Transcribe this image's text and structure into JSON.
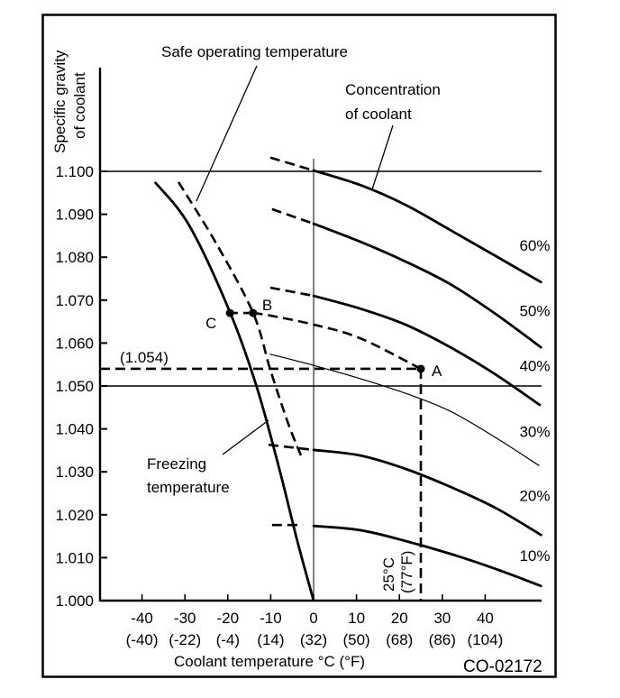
{
  "chart_data": {
    "type": "line",
    "title": "",
    "ylabel_lines": [
      "Specific gravity",
      "of coolant"
    ],
    "xlabel": "Coolant  temperature °C (°F)",
    "figure_id": "CO-02172",
    "xlim": [
      -50,
      53
    ],
    "ylim": [
      1.0,
      1.1
    ],
    "x_ticks": [
      {
        "value": -40,
        "c": "-40",
        "f": "(-40)"
      },
      {
        "value": -30,
        "c": "-30",
        "f": "(-22)"
      },
      {
        "value": -20,
        "c": "-20",
        "f": "(-4)"
      },
      {
        "value": -10,
        "c": "-10",
        "f": "(14)"
      },
      {
        "value": 0,
        "c": "0",
        "f": "(32)"
      },
      {
        "value": 10,
        "c": "10",
        "f": "(50)"
      },
      {
        "value": 20,
        "c": "20",
        "f": "(68)"
      },
      {
        "value": 30,
        "c": "30",
        "f": "(86)"
      },
      {
        "value": 40,
        "c": "40",
        "f": "(104)"
      }
    ],
    "y_ticks": [
      {
        "value": 1.0,
        "label": "1.000"
      },
      {
        "value": 1.01,
        "label": "1.010"
      },
      {
        "value": 1.02,
        "label": "1.020"
      },
      {
        "value": 1.03,
        "label": "1.030"
      },
      {
        "value": 1.04,
        "label": "1.040"
      },
      {
        "value": 1.05,
        "label": "1.050"
      },
      {
        "value": 1.06,
        "label": "1.060"
      },
      {
        "value": 1.07,
        "label": "1.070"
      },
      {
        "value": 1.08,
        "label": "1.080"
      },
      {
        "value": 1.09,
        "label": "1.090"
      },
      {
        "value": 1.1,
        "label": "1.100"
      }
    ],
    "reference_lines": {
      "horizontal": [
        1.1,
        1.05
      ],
      "vertical": [
        0
      ]
    },
    "series": [
      {
        "name": "60%",
        "weight": "bold",
        "dashed": [
          [
            -10.1,
            1.1032
          ],
          [
            0,
            1.1002
          ]
        ],
        "solid": [
          [
            0,
            1.1002
          ],
          [
            10.9,
            1.0968
          ],
          [
            21.4,
            1.0922
          ],
          [
            31.9,
            1.0863
          ],
          [
            42.4,
            1.0803
          ],
          [
            53,
            1.0742
          ]
        ],
        "label_at": [
          48,
          1.0815
        ]
      },
      {
        "name": "50%",
        "weight": "bold",
        "dashed": [
          [
            -9.7,
            1.0912
          ],
          [
            0,
            1.0878
          ]
        ],
        "solid": [
          [
            0,
            1.0878
          ],
          [
            10.9,
            1.0836
          ],
          [
            21.4,
            1.079
          ],
          [
            31.9,
            1.0737
          ],
          [
            42.4,
            1.0668
          ],
          [
            53,
            1.059
          ]
        ],
        "label_at": [
          48,
          1.0663
        ]
      },
      {
        "name": "40%",
        "weight": "bold",
        "dashed": [
          [
            -10.1,
            1.0729
          ],
          [
            0,
            1.071
          ]
        ],
        "solid": [
          [
            0,
            1.071
          ],
          [
            10.9,
            1.068
          ],
          [
            21.4,
            1.0643
          ],
          [
            31.9,
            1.059
          ],
          [
            42.4,
            1.0527
          ],
          [
            52.7,
            1.0456
          ]
        ],
        "label_at": [
          48,
          1.0535
        ]
      },
      {
        "name": "30%",
        "weight": "thin",
        "dashed": [],
        "solid": [
          [
            -10.1,
            1.0574
          ],
          [
            0,
            1.0548
          ],
          [
            10.9,
            1.0517
          ],
          [
            21.4,
            1.0483
          ],
          [
            31.9,
            1.0441
          ],
          [
            42.4,
            1.038
          ],
          [
            52.5,
            1.0315
          ]
        ],
        "label_at": [
          48,
          1.0381
        ]
      },
      {
        "name": "20%",
        "weight": "bold",
        "dashed": [
          [
            -10.5,
            1.0363
          ],
          [
            0,
            1.0351
          ]
        ],
        "solid": [
          [
            0,
            1.0351
          ],
          [
            10.9,
            1.0338
          ],
          [
            21.4,
            1.0307
          ],
          [
            31.9,
            1.0265
          ],
          [
            42.4,
            1.0216
          ],
          [
            53,
            1.0153
          ]
        ],
        "label_at": [
          48,
          1.0232
        ]
      },
      {
        "name": "10%",
        "weight": "bold",
        "dashed": [
          [
            -9.7,
            1.0176
          ],
          [
            -2.5,
            1.0176
          ]
        ],
        "solid": [
          [
            0,
            1.0174
          ],
          [
            10.9,
            1.0164
          ],
          [
            21.4,
            1.0139
          ],
          [
            31.9,
            1.0109
          ],
          [
            42.4,
            1.0074
          ],
          [
            53,
            1.0034
          ]
        ],
        "label_at": [
          48,
          1.0092
        ]
      }
    ],
    "freezing_curve": {
      "name": "Freezing temperature",
      "points": [
        [
          -37,
          1.0975
        ],
        [
          -29,
          1.0874
        ],
        [
          -19.5,
          1.0672
        ],
        [
          -13.2,
          1.0496
        ],
        [
          -8,
          1.0307
        ],
        [
          -3.8,
          1.0139
        ],
        [
          0,
          1.0
        ]
      ]
    },
    "safe_curve": {
      "name": "Safe operating temperature",
      "points": [
        [
          -31.5,
          1.0975
        ],
        [
          -22.7,
          1.0832
        ],
        [
          -14.1,
          1.067
        ],
        [
          -10.1,
          1.0538
        ],
        [
          -5.9,
          1.0412
        ],
        [
          -2.7,
          1.0332
        ]
      ]
    },
    "example_path": {
      "points": [
        [
          25,
          1.054
        ],
        [
          10.9,
          1.0611
        ],
        [
          0,
          1.0643
        ],
        [
          -10.1,
          1.0664
        ],
        [
          -14.1,
          1.067
        ]
      ],
      "to_c": [
        [
          -14.1,
          1.067
        ],
        [
          -19.5,
          1.067
        ]
      ]
    },
    "markers": [
      {
        "name": "A",
        "x": 25,
        "y": 1.054
      },
      {
        "name": "B",
        "x": -14.1,
        "y": 1.067
      },
      {
        "name": "C",
        "x": -19.5,
        "y": 1.067
      }
    ],
    "guides": {
      "sg_value": 1.054,
      "sg_label": "(1.054)",
      "temp_value": 25,
      "temp_label_c": "25°C",
      "temp_label_f": "(77°F)"
    },
    "annotations": {
      "safe": "Safe  operating  temperature",
      "concentration_1": "Concentration",
      "concentration_2": "of  coolant",
      "freezing_1": "Freezing",
      "freezing_2": "temperature"
    }
  }
}
